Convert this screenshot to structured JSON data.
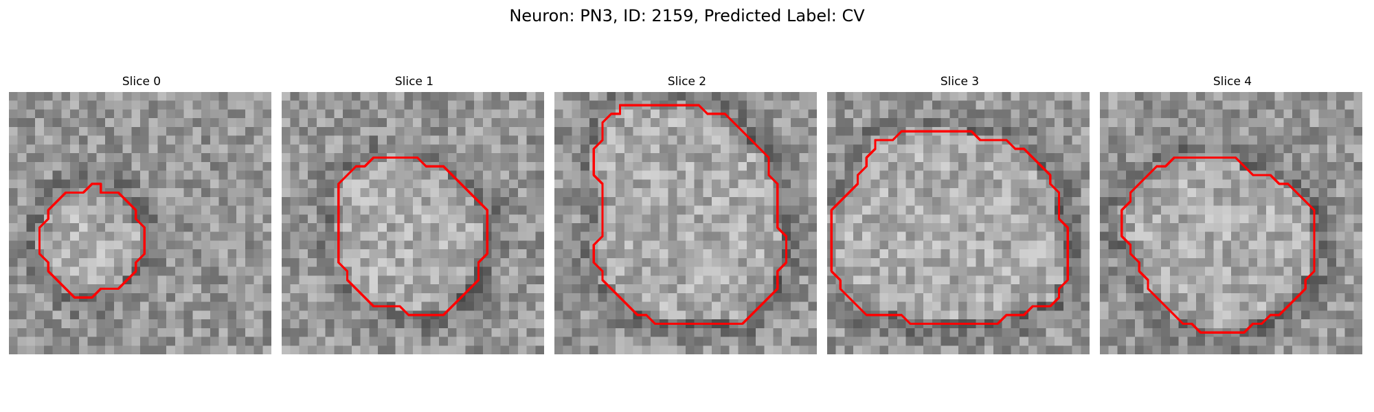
{
  "figure": {
    "title": "Neuron: PN3, ID: 2159, Predicted Label: CV"
  },
  "contour_color": "#ff0000",
  "slices": [
    {
      "title": "Slice 0",
      "contour": [
        [
          10.5,
          11.5
        ],
        [
          12.5,
          11.5
        ],
        [
          13.5,
          12.5
        ],
        [
          14.5,
          13.5
        ],
        [
          14.5,
          14.5
        ],
        [
          15.5,
          15.5
        ],
        [
          15.5,
          18.5
        ],
        [
          14.5,
          19.5
        ],
        [
          14.5,
          20.5
        ],
        [
          13.5,
          21.5
        ],
        [
          12.5,
          22.5
        ],
        [
          10.5,
          22.5
        ],
        [
          9.5,
          23.5
        ],
        [
          7.5,
          23.5
        ],
        [
          6.5,
          22.5
        ],
        [
          5.5,
          21.5
        ],
        [
          4.5,
          20.5
        ],
        [
          4.5,
          19.5
        ],
        [
          3.5,
          18.5
        ],
        [
          3.5,
          15.5
        ],
        [
          4.5,
          14.5
        ],
        [
          4.5,
          13.5
        ],
        [
          5.5,
          12.5
        ],
        [
          6.5,
          11.5
        ],
        [
          8.5,
          11.5
        ],
        [
          9.5,
          10.5
        ],
        [
          10.5,
          10.5
        ]
      ]
    },
    {
      "title": "Slice 1",
      "contour": [
        [
          10.5,
          7.5
        ],
        [
          15.5,
          7.5
        ],
        [
          16.5,
          8.5
        ],
        [
          18.5,
          8.5
        ],
        [
          19.5,
          9.5
        ],
        [
          20.5,
          10.5
        ],
        [
          21.5,
          11.5
        ],
        [
          22.5,
          12.5
        ],
        [
          23.5,
          13.5
        ],
        [
          23.5,
          18.5
        ],
        [
          22.5,
          19.5
        ],
        [
          22.5,
          21.5
        ],
        [
          21.5,
          22.5
        ],
        [
          20.5,
          23.5
        ],
        [
          19.5,
          24.5
        ],
        [
          18.5,
          25.5
        ],
        [
          14.5,
          25.5
        ],
        [
          13.5,
          24.5
        ],
        [
          10.5,
          24.5
        ],
        [
          9.5,
          23.5
        ],
        [
          8.5,
          22.5
        ],
        [
          7.5,
          21.5
        ],
        [
          7.5,
          20.5
        ],
        [
          6.5,
          19.5
        ],
        [
          6.5,
          10.5
        ],
        [
          7.5,
          9.5
        ],
        [
          8.5,
          8.5
        ],
        [
          9.5,
          8.5
        ]
      ]
    },
    {
      "title": "Slice 2",
      "contour": [
        [
          7.5,
          1.5
        ],
        [
          16.5,
          1.5
        ],
        [
          17.5,
          2.5
        ],
        [
          19.5,
          2.5
        ],
        [
          20.5,
          3.5
        ],
        [
          21.5,
          4.5
        ],
        [
          23.5,
          6.5
        ],
        [
          24.5,
          7.5
        ],
        [
          24.5,
          9.5
        ],
        [
          25.5,
          10.5
        ],
        [
          25.5,
          15.5
        ],
        [
          26.5,
          16.5
        ],
        [
          26.5,
          19.5
        ],
        [
          25.5,
          20.5
        ],
        [
          25.5,
          22.5
        ],
        [
          24.5,
          23.5
        ],
        [
          23.5,
          24.5
        ],
        [
          22.5,
          25.5
        ],
        [
          21.5,
          26.5
        ],
        [
          11.5,
          26.5
        ],
        [
          10.5,
          25.5
        ],
        [
          9.5,
          25.5
        ],
        [
          7.5,
          23.5
        ],
        [
          6.5,
          22.5
        ],
        [
          5.5,
          21.5
        ],
        [
          5.5,
          20.5
        ],
        [
          4.5,
          19.5
        ],
        [
          4.5,
          17.5
        ],
        [
          5.5,
          16.5
        ],
        [
          5.5,
          10.5
        ],
        [
          4.5,
          9.5
        ],
        [
          4.5,
          6.5
        ],
        [
          5.5,
          5.5
        ],
        [
          5.5,
          3.5
        ],
        [
          6.5,
          2.5
        ],
        [
          7.5,
          2.5
        ]
      ]
    },
    {
      "title": "Slice 3",
      "contour": [
        [
          8.5,
          4.5
        ],
        [
          16.5,
          4.5
        ],
        [
          17.5,
          5.5
        ],
        [
          20.5,
          5.5
        ],
        [
          21.5,
          6.5
        ],
        [
          22.5,
          6.5
        ],
        [
          23.5,
          7.5
        ],
        [
          24.5,
          8.5
        ],
        [
          25.5,
          9.5
        ],
        [
          25.5,
          10.5
        ],
        [
          26.5,
          11.5
        ],
        [
          26.5,
          14.5
        ],
        [
          27.5,
          15.5
        ],
        [
          27.5,
          21.5
        ],
        [
          26.5,
          22.5
        ],
        [
          26.5,
          23.5
        ],
        [
          25.5,
          24.5
        ],
        [
          23.5,
          24.5
        ],
        [
          22.5,
          25.5
        ],
        [
          20.5,
          25.5
        ],
        [
          19.5,
          26.5
        ],
        [
          9.5,
          26.5
        ],
        [
          8.5,
          25.5
        ],
        [
          4.5,
          25.5
        ],
        [
          3.5,
          24.5
        ],
        [
          2.5,
          23.5
        ],
        [
          1.5,
          22.5
        ],
        [
          1.5,
          21.5
        ],
        [
          0.5,
          20.5
        ],
        [
          0.5,
          13.5
        ],
        [
          1.5,
          12.5
        ],
        [
          2.5,
          11.5
        ],
        [
          3.5,
          10.5
        ],
        [
          3.5,
          9.5
        ],
        [
          4.5,
          8.5
        ],
        [
          4.5,
          7.5
        ],
        [
          5.5,
          6.5
        ],
        [
          5.5,
          5.5
        ],
        [
          7.5,
          5.5
        ],
        [
          8.5,
          4.5
        ]
      ]
    },
    {
      "title": "Slice 4",
      "contour": [
        [
          8.5,
          7.5
        ],
        [
          15.5,
          7.5
        ],
        [
          16.5,
          8.5
        ],
        [
          17.5,
          9.5
        ],
        [
          19.5,
          9.5
        ],
        [
          20.5,
          10.5
        ],
        [
          21.5,
          10.5
        ],
        [
          22.5,
          11.5
        ],
        [
          23.5,
          12.5
        ],
        [
          24.5,
          13.5
        ],
        [
          24.5,
          20.5
        ],
        [
          23.5,
          21.5
        ],
        [
          23.5,
          22.5
        ],
        [
          22.5,
          23.5
        ],
        [
          21.5,
          24.5
        ],
        [
          20.5,
          25.5
        ],
        [
          19.5,
          25.5
        ],
        [
          18.5,
          26.5
        ],
        [
          17.5,
          26.5
        ],
        [
          16.5,
          27.5
        ],
        [
          11.5,
          27.5
        ],
        [
          10.5,
          26.5
        ],
        [
          9.5,
          26.5
        ],
        [
          8.5,
          25.5
        ],
        [
          7.5,
          24.5
        ],
        [
          6.5,
          23.5
        ],
        [
          5.5,
          22.5
        ],
        [
          5.5,
          21.5
        ],
        [
          4.5,
          20.5
        ],
        [
          4.5,
          19.5
        ],
        [
          3.5,
          18.5
        ],
        [
          3.5,
          17.5
        ],
        [
          2.5,
          16.5
        ],
        [
          2.5,
          13.5
        ],
        [
          3.5,
          12.5
        ],
        [
          3.5,
          11.5
        ],
        [
          4.5,
          10.5
        ],
        [
          5.5,
          9.5
        ],
        [
          6.5,
          8.5
        ],
        [
          7.5,
          8.5
        ],
        [
          8.5,
          7.5
        ]
      ]
    }
  ]
}
